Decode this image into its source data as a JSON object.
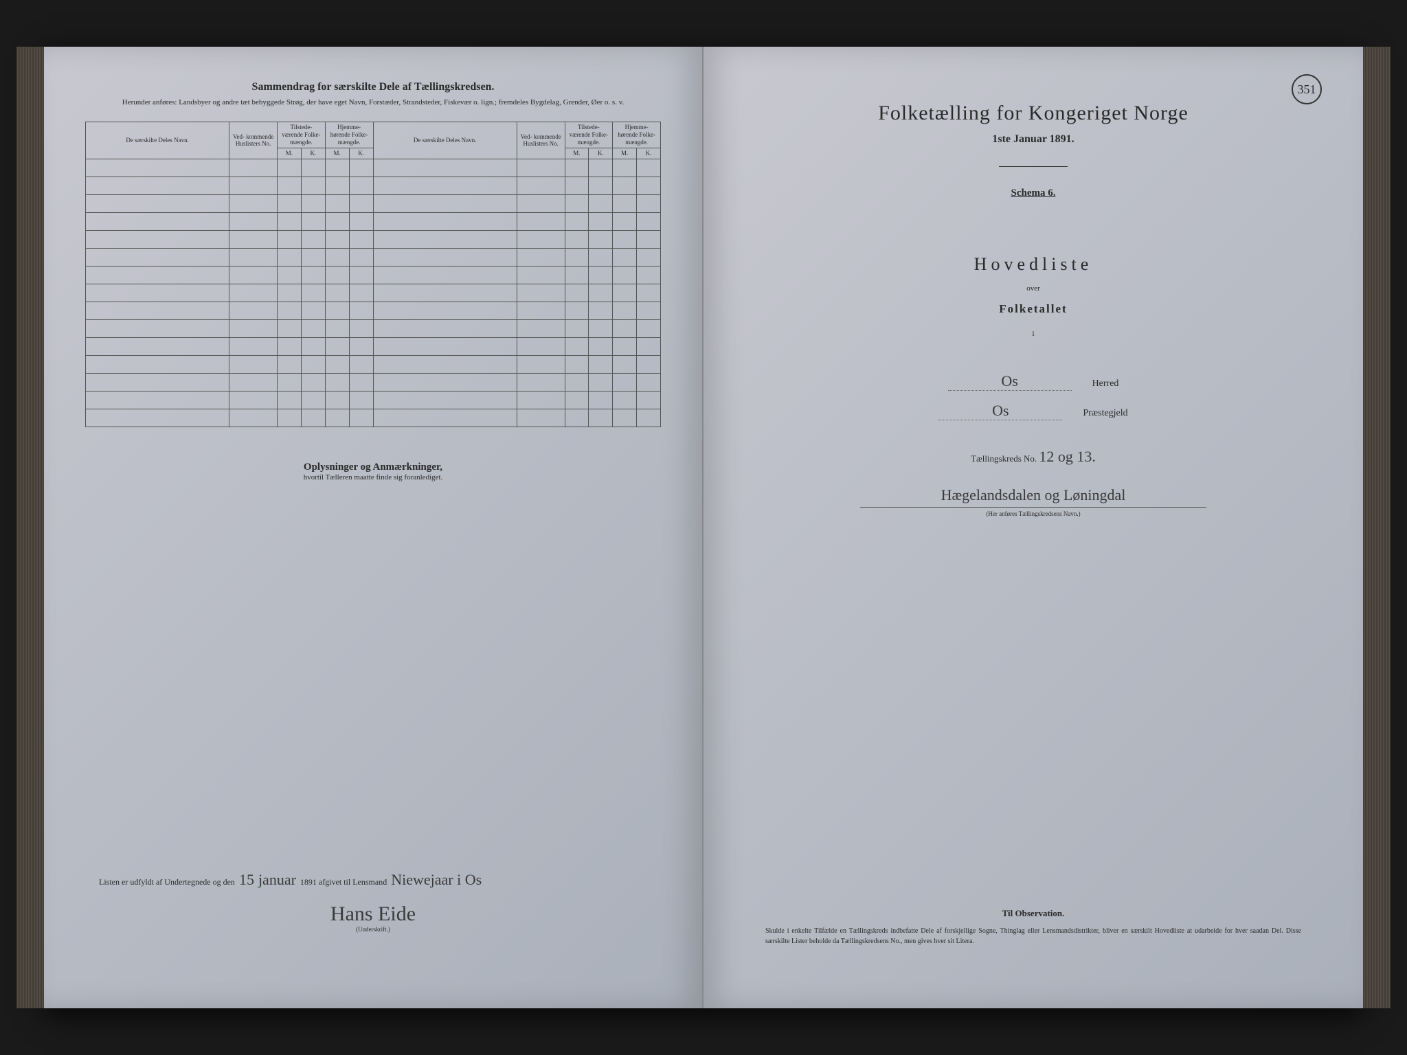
{
  "page_number": "351",
  "colors": {
    "page_bg_start": "#c8c8d0",
    "page_bg_end": "#aab0ba",
    "ink": "#2a2a2a",
    "border": "#555555",
    "outer_bg": "#1a1a1a"
  },
  "left_page": {
    "title": "Sammendrag for særskilte Dele af Tællingskredsen.",
    "subtitle": "Herunder anføres: Landsbyer og andre tæt bebyggede Strøg, der have eget Navn, Forstæder, Strandsteder, Fiskevær o. lign.; fremdeles Bygdelag, Grender, Øer o. s. v.",
    "table": {
      "headers": {
        "name": "De særskilte Deles Navn.",
        "huslister": "Ved-\nkommende\nHuslisters\nNo.",
        "tilstede": "Tilstede-\nværende\nFolke-\nmængde.",
        "hjemme": "Hjemme-\nhørende\nFolke-\nmængde.",
        "m": "M.",
        "k": "K."
      },
      "blank_rows": 15
    },
    "remarks": {
      "title": "Oplysninger og Anmærkninger,",
      "subtitle": "hvortil Tælleren maatte finde sig foranlediget."
    },
    "signature": {
      "prefix": "Listen er udfyldt af Undertegnede og den",
      "day": "15",
      "month": "januar",
      "year_text": "1891 afgivet til Lensmand",
      "lensmand": "Niewejaar i Os",
      "name": "Hans Eide",
      "under": "(Underskrift.)"
    }
  },
  "right_page": {
    "main_title": "Folketælling for Kongeriget Norge",
    "date": "1ste Januar 1891.",
    "schema": "Schema 6.",
    "hovedliste": "Hovedliste",
    "over": "over",
    "folketallet": "Folketallet",
    "i": "i",
    "herred_value": "Os",
    "herred_label": "Herred",
    "praestegjeld_value": "Os",
    "praestegjeld_label": "Præstegjeld",
    "kreds_prefix": "Tællingskreds No.",
    "kreds_no": "12 og 13.",
    "kreds_name": "Hægelandsdalen og Løningdal",
    "kreds_caption": "(Her anføres Tællingskredsens Navn.)",
    "observation": {
      "title": "Til Observation.",
      "text": "Skulde i enkelte Tilfælde en Tællingskreds indbefatte Dele af forskjellige Sogne, Thinglag eller Lensmandsdistrikter, bliver en særskilt Hovedliste at udarbeide for hver saadan Del. Disse særskilte Lister beholde da Tællingskredsens No., men gives hver sit Litera."
    }
  }
}
